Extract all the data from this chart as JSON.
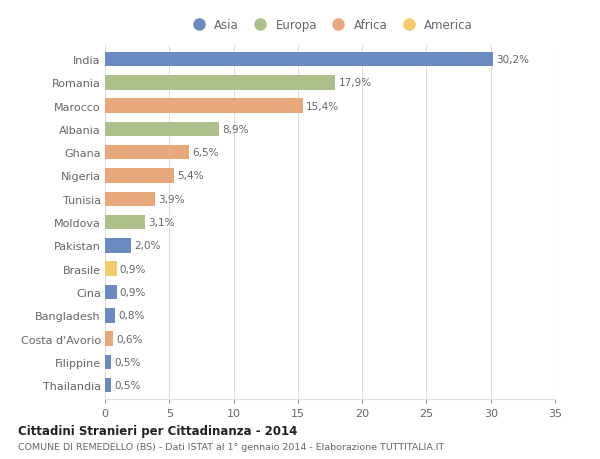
{
  "countries": [
    "India",
    "Romania",
    "Marocco",
    "Albania",
    "Ghana",
    "Nigeria",
    "Tunisia",
    "Moldova",
    "Pakistan",
    "Brasile",
    "Cina",
    "Bangladesh",
    "Costa d'Avorio",
    "Filippine",
    "Thailandia"
  ],
  "values": [
    30.2,
    17.9,
    15.4,
    8.9,
    6.5,
    5.4,
    3.9,
    3.1,
    2.0,
    0.9,
    0.9,
    0.8,
    0.6,
    0.5,
    0.5
  ],
  "labels": [
    "30,2%",
    "17,9%",
    "15,4%",
    "8,9%",
    "6,5%",
    "5,4%",
    "3,9%",
    "3,1%",
    "2,0%",
    "0,9%",
    "0,9%",
    "0,8%",
    "0,6%",
    "0,5%",
    "0,5%"
  ],
  "continents": [
    "Asia",
    "Europa",
    "Africa",
    "Europa",
    "Africa",
    "Africa",
    "Africa",
    "Europa",
    "Asia",
    "America",
    "Asia",
    "Asia",
    "Africa",
    "Asia",
    "Asia"
  ],
  "continent_colors": {
    "Asia": "#6A8BBF",
    "Europa": "#ADBF8A",
    "Africa": "#E8A87C",
    "America": "#F0CC6A"
  },
  "legend_order": [
    "Asia",
    "Europa",
    "Africa",
    "America"
  ],
  "title": "Cittadini Stranieri per Cittadinanza - 2014",
  "subtitle": "COMUNE DI REMEDELLO (BS) - Dati ISTAT al 1° gennaio 2014 - Elaborazione TUTTITALIA.IT",
  "xlim": [
    0,
    35
  ],
  "xticks": [
    0,
    5,
    10,
    15,
    20,
    25,
    30,
    35
  ],
  "background_color": "#ffffff",
  "grid_color": "#dddddd",
  "text_color": "#666666",
  "title_color": "#222222",
  "subtitle_color": "#666666",
  "bar_height": 0.62
}
